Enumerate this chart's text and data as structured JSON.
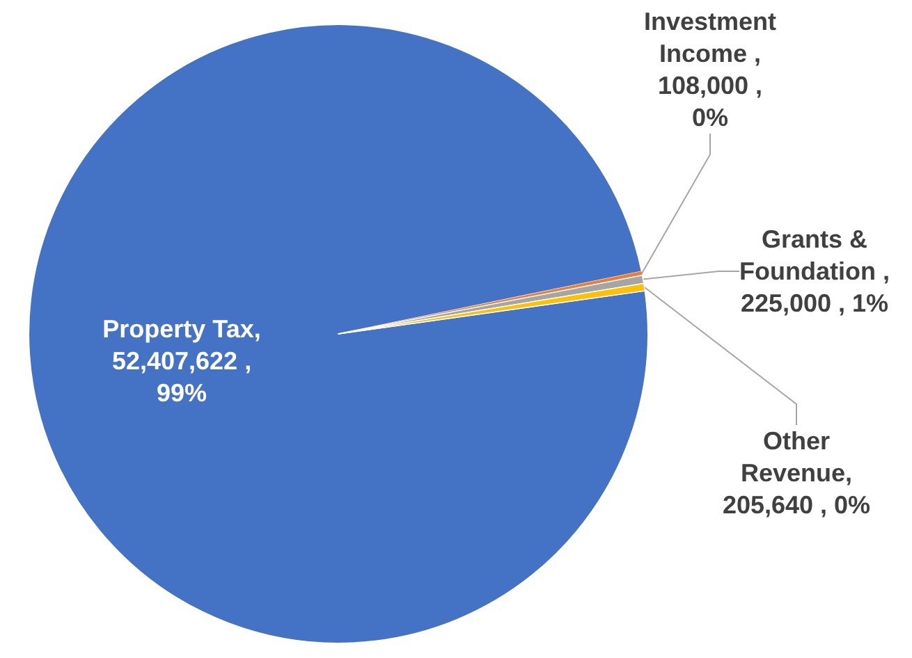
{
  "chart_data": {
    "type": "pie",
    "categories": [
      "Property Tax",
      "Investment Income",
      "Grants & Foundation",
      "Other Revenue"
    ],
    "values": [
      52407622,
      108000,
      225000,
      205640
    ],
    "colors": [
      "#4472c4",
      "#ed7d31",
      "#a5a5a5",
      "#ffc000"
    ],
    "value_labels": [
      ", 52,407,622 , 99%",
      " , 108,000 , 0%",
      " , 225,000 , 1%",
      ", 205,640 , 0%"
    ],
    "legend": false
  }
}
